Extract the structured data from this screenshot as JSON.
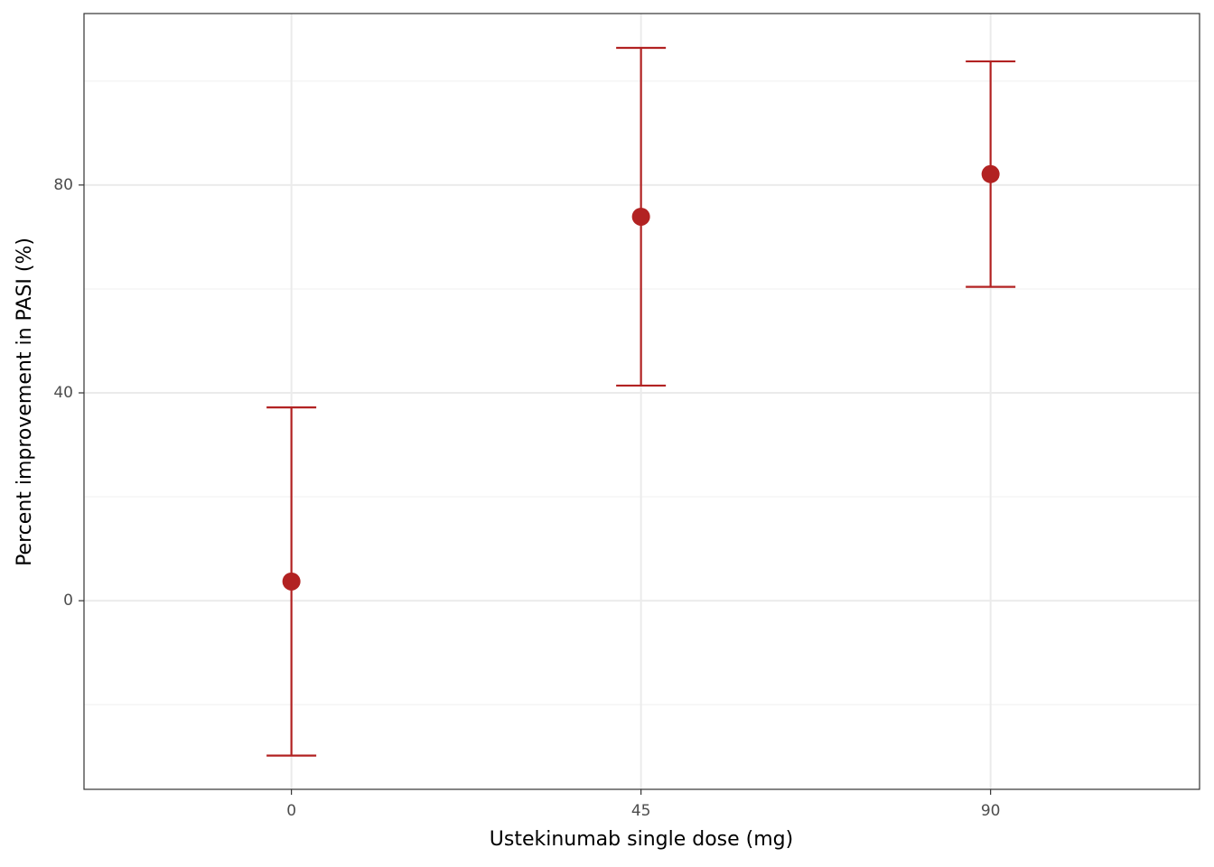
{
  "chart_data": {
    "type": "errorbar",
    "x_label": "Ustekinumab single dose (mg)",
    "y_label": "Percent improvement in PASI (%)",
    "x": [
      0,
      45,
      90
    ],
    "values": [
      3.7,
      73.9,
      82.1
    ],
    "errors": [
      33.5,
      32.5,
      21.7
    ],
    "color": "#b22222",
    "xlim": [
      -26.7,
      116.9
    ],
    "xticks": [
      0,
      45,
      90
    ],
    "ylim": [
      -36.3,
      113.0
    ],
    "yticks": [
      0,
      40,
      80
    ],
    "yminor": [
      -20,
      20,
      60,
      100
    ],
    "grid": true
  }
}
